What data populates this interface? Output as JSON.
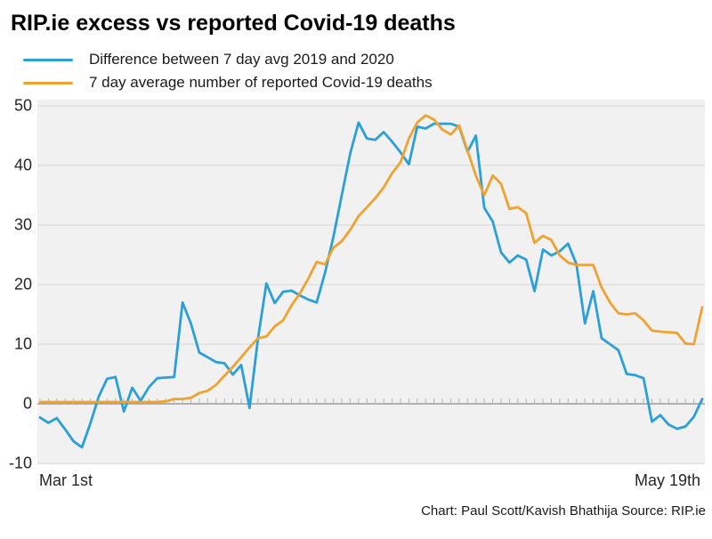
{
  "title": "RIP.ie excess vs reported Covid-19 deaths",
  "footer": "Chart: Paul Scott/Kavish Bhathija Source: RIP.ie",
  "x_axis": {
    "start_label": "Mar 1st",
    "end_label": "May 19th"
  },
  "colors": {
    "blue": "#2b9fd8",
    "orange": "#f0a22f",
    "plot_bg": "#f1f1f2",
    "gridline": "#dcdcdc",
    "axis_line": "#9a9a9a",
    "tick": "#b3b3b3",
    "text": "#1a1a1a"
  },
  "chart_data": {
    "type": "line",
    "title": "RIP.ie excess vs reported Covid-19 deaths",
    "xlabel": "",
    "ylabel": "",
    "x_tick_labels": [
      "Mar 1st",
      "May 19th"
    ],
    "x_unit": "day (daily points, Mar 1 to May 19, 2020)",
    "x_count": 80,
    "ylim": [
      -10,
      50
    ],
    "yticks": [
      -10,
      0,
      10,
      20,
      30,
      40,
      50
    ],
    "grid": true,
    "legend_position": "top-left",
    "series": [
      {
        "name": "Difference between 7 day avg 2019 and 2020",
        "color": "#2b9fd8",
        "values": [
          -2.3,
          -3.2,
          -2.4,
          -4.3,
          -6.3,
          -7.3,
          -3.3,
          1.2,
          4.2,
          4.5,
          -1.3,
          2.7,
          0.5,
          2.8,
          4.3,
          4.4,
          4.5,
          17,
          13.5,
          8.6,
          7.8,
          7,
          6.8,
          4.9,
          6.5,
          -0.7,
          11,
          20.2,
          16.9,
          18.8,
          19,
          18.2,
          17.5,
          17,
          22,
          28,
          35,
          42,
          47.2,
          44.5,
          44.3,
          45.6,
          44,
          42.2,
          40.2,
          46.5,
          46.2,
          47,
          47,
          47,
          46.5,
          42.3,
          45,
          32.9,
          30.6,
          25.4,
          23.7,
          24.9,
          24.2,
          18.9,
          25.9,
          24.9,
          25.6,
          26.9,
          23.4,
          13.5,
          18.9,
          11,
          10,
          9,
          5,
          4.8,
          4.3,
          -3,
          -1.9,
          -3.5,
          -4.2,
          -3.8,
          -2.2,
          0.8
        ]
      },
      {
        "name": "7 day average number of reported Covid-19 deaths",
        "color": "#f0a22f",
        "values": [
          0.3,
          0.3,
          0.3,
          0.3,
          0.3,
          0.3,
          0.3,
          0.3,
          0.3,
          0.3,
          0.3,
          0.3,
          0.3,
          0.3,
          0.3,
          0.4,
          0.8,
          0.8,
          1,
          1.8,
          2.2,
          3.2,
          4.7,
          6.2,
          7.8,
          9.5,
          11,
          11.3,
          13,
          14,
          16.5,
          18.5,
          21,
          23.8,
          23.4,
          26.2,
          27.3,
          29.2,
          31.5,
          33,
          34.5,
          36.3,
          38.7,
          40.5,
          44.5,
          47.2,
          48.4,
          47.7,
          46,
          45.2,
          46.7,
          42.5,
          38.3,
          35,
          38.3,
          36.9,
          32.7,
          33,
          32,
          27,
          28.2,
          27.5,
          24.9,
          23.7,
          23.3,
          23.3,
          23.3,
          19.5,
          17,
          15.2,
          15,
          15.2,
          14,
          12.3,
          12.1,
          12,
          11.9,
          10.1,
          10,
          16.2
        ]
      }
    ]
  }
}
